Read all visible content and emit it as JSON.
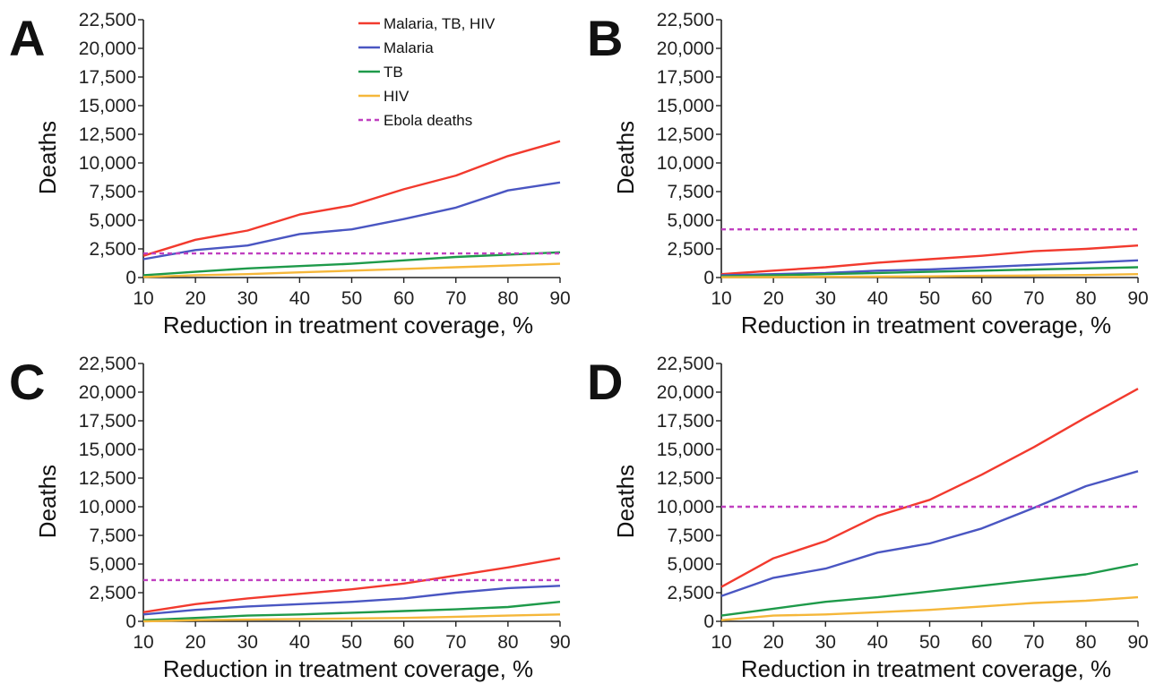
{
  "colors": {
    "malaria_tb_hiv": "#f23a2e",
    "malaria": "#4a56c2",
    "tb": "#1e9a4a",
    "hiv": "#f5b73a",
    "ebola": "#c040c0"
  },
  "chart_data": [
    {
      "panel": "A",
      "type": "line",
      "xlabel": "Reduction in treatment coverage, %",
      "ylabel": "Deaths",
      "x": [
        10,
        20,
        30,
        40,
        50,
        60,
        70,
        80,
        90
      ],
      "xlim": [
        10,
        90
      ],
      "ylim": [
        0,
        22500
      ],
      "yticks": [
        "0",
        "2,500",
        "5,000",
        "7,500",
        "10,000",
        "12,500",
        "15,000",
        "17,500",
        "20,000",
        "22,500"
      ],
      "xticks": [
        "10",
        "20",
        "30",
        "40",
        "50",
        "60",
        "70",
        "80",
        "90"
      ],
      "legend": "top-right",
      "series": [
        {
          "name": "Malaria, TB, HIV",
          "color_key": "malaria_tb_hiv",
          "values": [
            1900,
            3300,
            4100,
            5500,
            6300,
            7700,
            8900,
            10600,
            11900
          ]
        },
        {
          "name": "Malaria",
          "color_key": "malaria",
          "values": [
            1600,
            2400,
            2800,
            3800,
            4200,
            5100,
            6100,
            7600,
            8300
          ]
        },
        {
          "name": "TB",
          "color_key": "tb",
          "values": [
            200,
            500,
            800,
            1000,
            1200,
            1500,
            1800,
            2000,
            2200
          ]
        },
        {
          "name": "HIV",
          "color_key": "hiv",
          "values": [
            50,
            200,
            300,
            450,
            600,
            750,
            900,
            1050,
            1200
          ]
        },
        {
          "name": "Ebola deaths",
          "color_key": "ebola",
          "dashed": true,
          "values": [
            2100,
            2100,
            2100,
            2100,
            2100,
            2100,
            2100,
            2100,
            2100
          ]
        }
      ]
    },
    {
      "panel": "B",
      "type": "line",
      "xlabel": "Reduction in treatment coverage, %",
      "ylabel": "Deaths",
      "x": [
        10,
        20,
        30,
        40,
        50,
        60,
        70,
        80,
        90
      ],
      "xlim": [
        10,
        90
      ],
      "ylim": [
        0,
        22500
      ],
      "yticks": [
        "0",
        "2,500",
        "5,000",
        "7,500",
        "10,000",
        "12,500",
        "15,000",
        "17,500",
        "20,000",
        "22,500"
      ],
      "xticks": [
        "10",
        "20",
        "30",
        "40",
        "50",
        "60",
        "70",
        "80",
        "90"
      ],
      "series": [
        {
          "color_key": "malaria_tb_hiv",
          "values": [
            300,
            600,
            900,
            1300,
            1600,
            1900,
            2300,
            2500,
            2800
          ]
        },
        {
          "color_key": "malaria",
          "values": [
            200,
            300,
            400,
            600,
            700,
            900,
            1100,
            1300,
            1500
          ]
        },
        {
          "color_key": "tb",
          "values": [
            100,
            200,
            300,
            400,
            500,
            600,
            700,
            800,
            900
          ]
        },
        {
          "color_key": "hiv",
          "values": [
            20,
            40,
            60,
            80,
            100,
            150,
            180,
            220,
            300
          ]
        },
        {
          "color_key": "ebola",
          "dashed": true,
          "values": [
            4200,
            4200,
            4200,
            4200,
            4200,
            4200,
            4200,
            4200,
            4200
          ]
        }
      ]
    },
    {
      "panel": "C",
      "type": "line",
      "xlabel": "Reduction in treatment coverage, %",
      "ylabel": "Deaths",
      "x": [
        10,
        20,
        30,
        40,
        50,
        60,
        70,
        80,
        90
      ],
      "xlim": [
        10,
        90
      ],
      "ylim": [
        0,
        22500
      ],
      "yticks": [
        "0",
        "2,500",
        "5,000",
        "7,500",
        "10,000",
        "12,500",
        "15,000",
        "17,500",
        "20,000",
        "22,500"
      ],
      "xticks": [
        "10",
        "20",
        "30",
        "40",
        "50",
        "60",
        "70",
        "80",
        "90"
      ],
      "series": [
        {
          "color_key": "malaria_tb_hiv",
          "values": [
            800,
            1500,
            2000,
            2400,
            2800,
            3300,
            4000,
            4700,
            5500
          ]
        },
        {
          "color_key": "malaria",
          "values": [
            600,
            1000,
            1300,
            1500,
            1700,
            2000,
            2500,
            2900,
            3100
          ]
        },
        {
          "color_key": "tb",
          "values": [
            100,
            300,
            500,
            600,
            750,
            900,
            1050,
            1250,
            1700
          ]
        },
        {
          "color_key": "hiv",
          "values": [
            0,
            100,
            150,
            200,
            250,
            300,
            400,
            500,
            600
          ]
        },
        {
          "color_key": "ebola",
          "dashed": true,
          "values": [
            3600,
            3600,
            3600,
            3600,
            3600,
            3600,
            3600,
            3600,
            3600
          ]
        }
      ]
    },
    {
      "panel": "D",
      "type": "line",
      "xlabel": "Reduction in treatment coverage, %",
      "ylabel": "Deaths",
      "x": [
        10,
        20,
        30,
        40,
        50,
        60,
        70,
        80,
        90
      ],
      "xlim": [
        10,
        90
      ],
      "ylim": [
        0,
        22500
      ],
      "yticks": [
        "0",
        "2,500",
        "5,000",
        "7,500",
        "10,000",
        "12,500",
        "15,000",
        "17,500",
        "20,000",
        "22,500"
      ],
      "xticks": [
        "10",
        "20",
        "30",
        "40",
        "50",
        "60",
        "70",
        "80",
        "90"
      ],
      "series": [
        {
          "color_key": "malaria_tb_hiv",
          "values": [
            3000,
            5500,
            7000,
            9200,
            10600,
            12800,
            15200,
            17800,
            20300
          ]
        },
        {
          "color_key": "malaria",
          "values": [
            2200,
            3800,
            4600,
            6000,
            6800,
            8100,
            9900,
            11800,
            13100
          ]
        },
        {
          "color_key": "tb",
          "values": [
            500,
            1100,
            1700,
            2100,
            2600,
            3100,
            3600,
            4100,
            5000
          ]
        },
        {
          "color_key": "hiv",
          "values": [
            100,
            500,
            600,
            800,
            1000,
            1300,
            1600,
            1800,
            2100
          ]
        },
        {
          "color_key": "ebola",
          "dashed": true,
          "values": [
            10000,
            10000,
            10000,
            10000,
            10000,
            10000,
            10000,
            10000,
            10000
          ]
        }
      ]
    }
  ]
}
